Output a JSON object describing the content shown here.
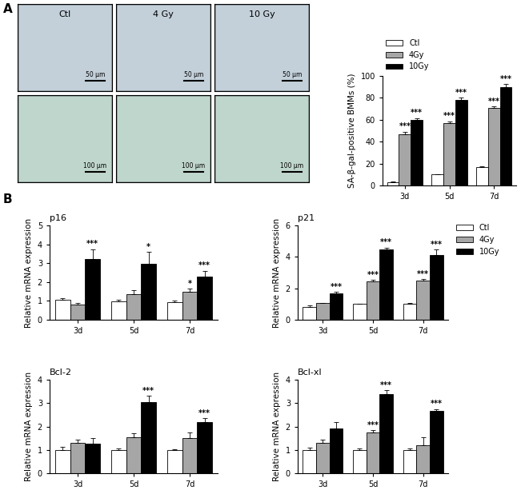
{
  "panel_labels": [
    "A",
    "B"
  ],
  "micrographs": {
    "columns": [
      "Ctl",
      "4 Gy",
      "10 Gy"
    ],
    "scale_bars": [
      "50 μm",
      "100 μm"
    ]
  },
  "chart_data": [
    {
      "type": "bar",
      "ylabel": "SA-β-gal-positive BMMs (%)",
      "categories": [
        "3d",
        "5d",
        "7d"
      ],
      "ylim": [
        0,
        100
      ],
      "yticks": [
        0,
        20,
        40,
        60,
        80,
        100
      ],
      "legend": "top",
      "series": [
        {
          "name": "Ctl",
          "color": "#ffffff",
          "values": [
            3,
            10,
            17
          ],
          "errors": [
            0.5,
            0.5,
            0.3
          ],
          "significance": [
            null,
            null,
            null
          ]
        },
        {
          "name": "4Gy",
          "color": "#a6a6a6",
          "values": [
            47,
            57,
            71
          ],
          "errors": [
            2,
            1.5,
            1
          ],
          "significance": [
            "***",
            "***",
            "***"
          ]
        },
        {
          "name": "10Gy",
          "color": "#000000",
          "values": [
            60,
            78,
            90
          ],
          "errors": [
            1.5,
            2,
            2.5
          ],
          "significance": [
            "***",
            "***",
            "***"
          ]
        }
      ]
    },
    {
      "type": "bar",
      "title": "p16",
      "ylabel": "Relative mRNA expression",
      "categories": [
        "3d",
        "5d",
        "7d"
      ],
      "ylim": [
        0,
        5
      ],
      "yticks": [
        0,
        1,
        2,
        3,
        4,
        5
      ],
      "series": [
        {
          "name": "Ctl",
          "color": "#ffffff",
          "values": [
            1.05,
            0.97,
            0.93
          ],
          "errors": [
            0.08,
            0.08,
            0.07
          ],
          "significance": [
            null,
            null,
            null
          ]
        },
        {
          "name": "4Gy",
          "color": "#a6a6a6",
          "values": [
            0.8,
            1.35,
            1.5
          ],
          "errors": [
            0.08,
            0.2,
            0.15
          ],
          "significance": [
            null,
            null,
            "*"
          ]
        },
        {
          "name": "10Gy",
          "color": "#000000",
          "values": [
            3.2,
            2.95,
            2.3
          ],
          "errors": [
            0.55,
            0.65,
            0.3
          ],
          "significance": [
            "***",
            "*",
            "***"
          ]
        }
      ]
    },
    {
      "type": "bar",
      "title": "p21",
      "ylabel": "Relative mRNA expression",
      "categories": [
        "3d",
        "5d",
        "7d"
      ],
      "ylim": [
        0,
        6
      ],
      "yticks": [
        0,
        2,
        4,
        6
      ],
      "legend": "right",
      "series": [
        {
          "name": "Ctl",
          "color": "#ffffff",
          "values": [
            0.8,
            1.0,
            1.0
          ],
          "errors": [
            0.1,
            0.03,
            0.08
          ],
          "significance": [
            null,
            null,
            null
          ]
        },
        {
          "name": "4Gy",
          "color": "#a6a6a6",
          "values": [
            1.05,
            2.45,
            2.5
          ],
          "errors": [
            0.03,
            0.08,
            0.1
          ],
          "significance": [
            null,
            "***",
            "***"
          ]
        },
        {
          "name": "10Gy",
          "color": "#000000",
          "values": [
            1.7,
            4.45,
            4.1
          ],
          "errors": [
            0.07,
            0.15,
            0.35
          ],
          "significance": [
            "***",
            "***",
            "***"
          ]
        }
      ]
    },
    {
      "type": "bar",
      "title": "Bcl-2",
      "ylabel": "Relative mRNA expression",
      "categories": [
        "3d",
        "5d",
        "7d"
      ],
      "ylim": [
        0,
        4
      ],
      "yticks": [
        0,
        1,
        2,
        3,
        4
      ],
      "series": [
        {
          "name": "Ctl",
          "color": "#ffffff",
          "values": [
            1.0,
            1.0,
            1.0
          ],
          "errors": [
            0.12,
            0.07,
            0.03
          ],
          "significance": [
            null,
            null,
            null
          ]
        },
        {
          "name": "4Gy",
          "color": "#a6a6a6",
          "values": [
            1.3,
            1.55,
            1.5
          ],
          "errors": [
            0.12,
            0.15,
            0.25
          ],
          "significance": [
            null,
            null,
            null
          ]
        },
        {
          "name": "10Gy",
          "color": "#000000",
          "values": [
            1.25,
            3.05,
            2.2
          ],
          "errors": [
            0.25,
            0.25,
            0.15
          ],
          "significance": [
            null,
            "***",
            "***"
          ]
        }
      ]
    },
    {
      "type": "bar",
      "title": "Bcl-xl",
      "ylabel": "Relative mRNA expression",
      "categories": [
        "3d",
        "5d",
        "7d"
      ],
      "ylim": [
        0,
        4
      ],
      "yticks": [
        0,
        1,
        2,
        3,
        4
      ],
      "series": [
        {
          "name": "Ctl",
          "color": "#ffffff",
          "values": [
            1.0,
            1.0,
            1.0
          ],
          "errors": [
            0.1,
            0.05,
            0.05
          ],
          "significance": [
            null,
            null,
            null
          ]
        },
        {
          "name": "4Gy",
          "color": "#a6a6a6",
          "values": [
            1.3,
            1.75,
            1.2
          ],
          "errors": [
            0.12,
            0.1,
            0.35
          ],
          "significance": [
            null,
            "***",
            null
          ]
        },
        {
          "name": "10Gy",
          "color": "#000000",
          "values": [
            1.9,
            3.4,
            2.65
          ],
          "errors": [
            0.3,
            0.15,
            0.1
          ],
          "significance": [
            null,
            "***",
            "***"
          ]
        }
      ]
    }
  ]
}
